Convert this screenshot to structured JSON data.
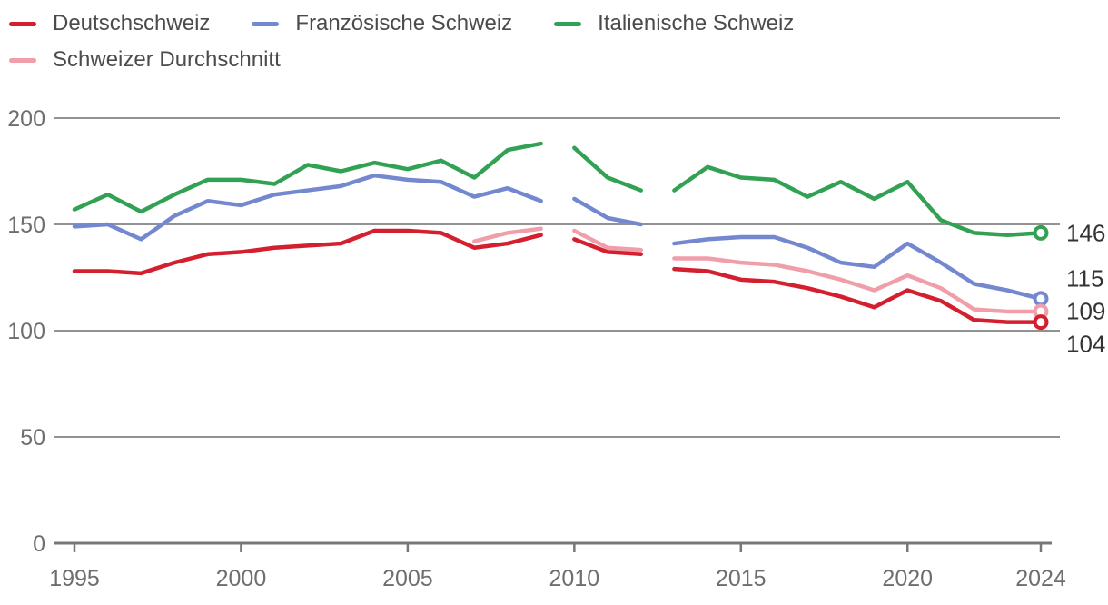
{
  "page": {
    "background": "#ffffff"
  },
  "colors": {
    "deutschschweiz": "#d41f2f",
    "franzoesische_schweiz": "#7488d0",
    "italienische_schweiz": "#33a154",
    "schweizer_durchschnitt": "#f09ea9",
    "grid": "#929292",
    "axis": "#777777",
    "tick_text": "#6e6e6e",
    "legend_text": "#4b4b4b",
    "end_label_text": "#333333"
  },
  "legend": {
    "items": [
      {
        "label": "Deutschschweiz",
        "series": "deutschschweiz"
      },
      {
        "label": "Französische Schweiz",
        "series": "franzoesische_schweiz"
      },
      {
        "label": "Italienische Schweiz",
        "series": "italienische_schweiz"
      },
      {
        "label": "Schweizer Durchschnitt",
        "series": "schweizer_durchschnitt"
      }
    ]
  },
  "chart_data": {
    "type": "line",
    "x": [
      1995,
      1996,
      1997,
      1998,
      1999,
      2000,
      2001,
      2002,
      2003,
      2004,
      2005,
      2006,
      2007,
      2008,
      2009,
      2010,
      2011,
      2012,
      2013,
      2014,
      2015,
      2016,
      2017,
      2018,
      2019,
      2020,
      2021,
      2022,
      2023,
      2024
    ],
    "xticks": [
      1995,
      2000,
      2005,
      2010,
      2015,
      2020,
      2024
    ],
    "yticks": [
      0,
      50,
      100,
      150,
      200
    ],
    "ylim": [
      0,
      200
    ],
    "grid": true,
    "legend_position": "top",
    "line_breaks_after": [
      2009,
      2012
    ],
    "series": [
      {
        "name": "Deutschschweiz",
        "key": "deutschschweiz",
        "end_label": "104",
        "values": [
          128,
          128,
          127,
          132,
          136,
          137,
          139,
          140,
          141,
          147,
          147,
          146,
          139,
          141,
          145,
          143,
          137,
          136,
          129,
          128,
          124,
          123,
          120,
          116,
          111,
          119,
          114,
          105,
          104,
          104
        ]
      },
      {
        "name": "Französische Schweiz",
        "key": "franzoesische_schweiz",
        "end_label": "115",
        "values": [
          149,
          150,
          143,
          154,
          161,
          159,
          164,
          166,
          168,
          173,
          171,
          170,
          163,
          167,
          161,
          162,
          153,
          150,
          141,
          143,
          144,
          144,
          139,
          132,
          130,
          141,
          132,
          122,
          119,
          115
        ]
      },
      {
        "name": "Italienische Schweiz",
        "key": "italienische_schweiz",
        "end_label": "146",
        "values": [
          157,
          164,
          156,
          164,
          171,
          171,
          169,
          178,
          175,
          179,
          176,
          180,
          172,
          185,
          188,
          186,
          172,
          166,
          166,
          177,
          172,
          171,
          163,
          170,
          162,
          170,
          152,
          146,
          145,
          146
        ]
      },
      {
        "name": "Schweizer Durchschnitt",
        "key": "schweizer_durchschnitt",
        "end_label": "109",
        "values": [
          null,
          null,
          null,
          null,
          null,
          null,
          null,
          null,
          null,
          null,
          null,
          null,
          142,
          146,
          148,
          147,
          139,
          138,
          134,
          134,
          132,
          131,
          128,
          124,
          119,
          126,
          120,
          110,
          109,
          109
        ]
      }
    ]
  }
}
